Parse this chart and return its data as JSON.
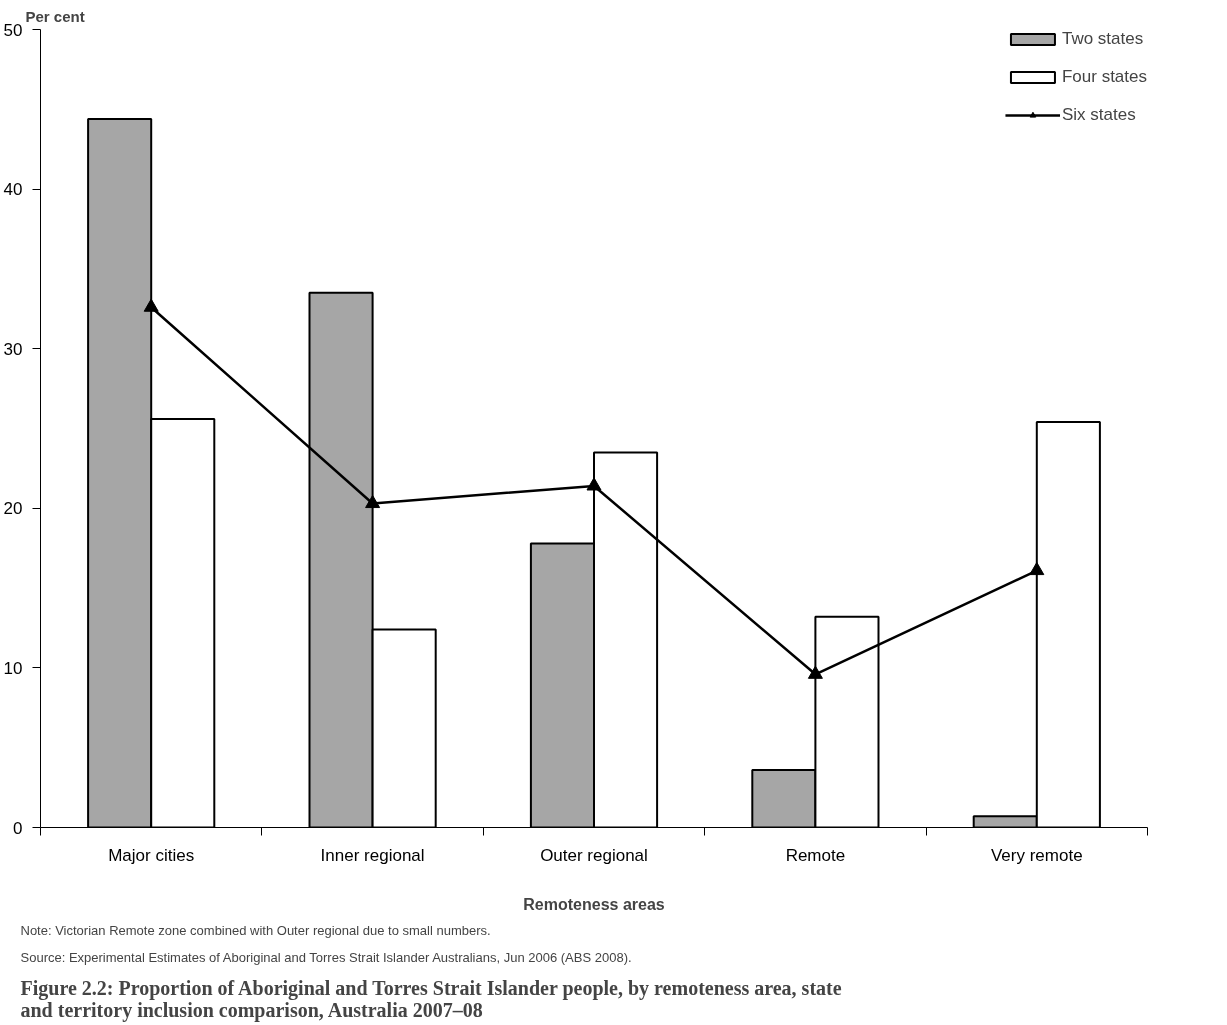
{
  "chart_data": {
    "type": "bar",
    "title": "Figure 2.2: Proportion of Aboriginal and Torres Strait Islander people, by remoteness area, state and territory inclusion comparison, Australia 2007–08",
    "xlabel": "Remoteness areas",
    "ylabel": "Per cent",
    "categories": [
      "Major cities",
      "Inner regional",
      "Outer regional",
      "Remote",
      "Very remote"
    ],
    "series": [
      {
        "name": "Two states",
        "color": "#a6a6a6",
        "values": [
          44.4,
          33.5,
          17.8,
          3.6,
          0.7
        ]
      },
      {
        "name": "Four states",
        "color": "#ffffff",
        "values": [
          25.6,
          12.4,
          23.5,
          13.2,
          25.4
        ]
      },
      {
        "name": "Six states",
        "color": "#000000",
        "type": "line",
        "marker": "triangle",
        "values": [
          32.6,
          20.3,
          21.4,
          9.6,
          16.1
        ]
      }
    ],
    "ylim": [
      0,
      50
    ],
    "yticks": [
      0,
      10,
      20,
      30,
      40,
      50
    ],
    "grid": false,
    "legend": "top right",
    "annotations": [
      "Note: Victorian Remote zone combined with Outer regional due to small numbers.",
      "Source: Experimental Estimates of Aboriginal and Torres Strait Islander Australians, Jun 2006 (ABS 2008)."
    ]
  }
}
